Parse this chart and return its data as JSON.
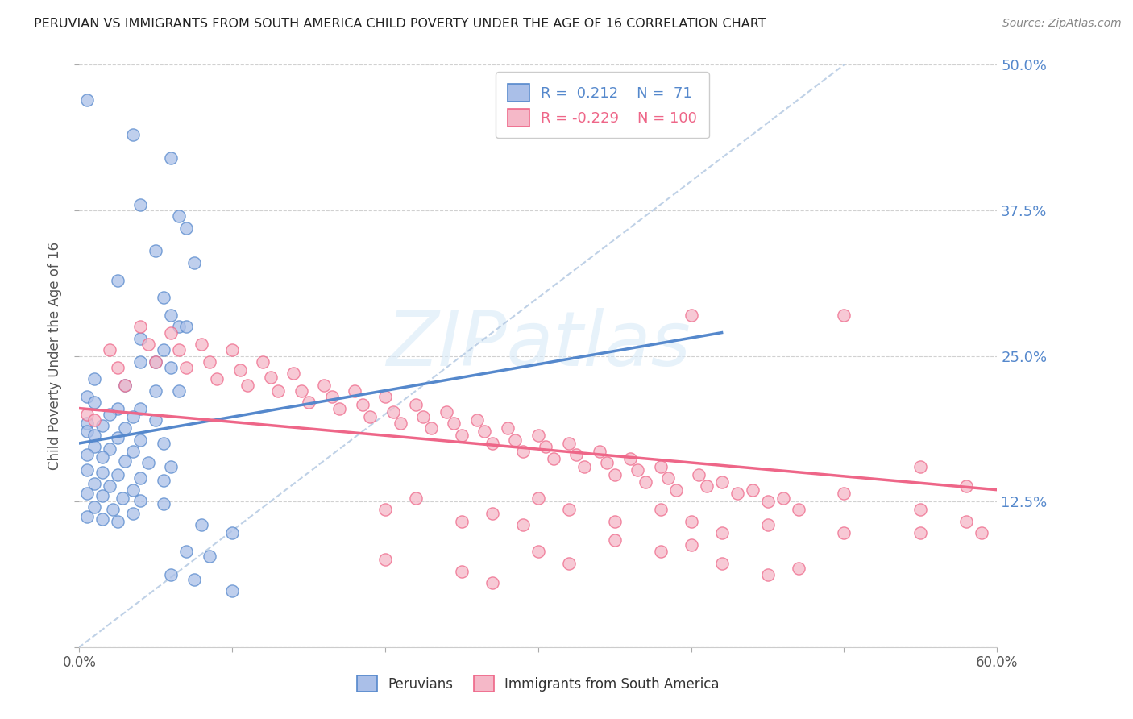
{
  "title": "PERUVIAN VS IMMIGRANTS FROM SOUTH AMERICA CHILD POVERTY UNDER THE AGE OF 16 CORRELATION CHART",
  "source": "Source: ZipAtlas.com",
  "ylabel": "Child Poverty Under the Age of 16",
  "xlim": [
    0.0,
    0.6
  ],
  "ylim": [
    0.0,
    0.5
  ],
  "xtick_positions": [
    0.0,
    0.1,
    0.2,
    0.3,
    0.4,
    0.5,
    0.6
  ],
  "xtick_labels": [
    "0.0%",
    "",
    "",
    "",
    "",
    "",
    "60.0%"
  ],
  "yticks": [
    0.0,
    0.125,
    0.25,
    0.375,
    0.5
  ],
  "ytick_labels_right": [
    "",
    "12.5%",
    "25.0%",
    "37.5%",
    "50.0%"
  ],
  "blue_color": "#5588cc",
  "blue_fill": "#aabfe8",
  "pink_color": "#ee6688",
  "pink_fill": "#f5b8c8",
  "r_blue": 0.212,
  "n_blue": 71,
  "r_pink": -0.229,
  "n_pink": 100,
  "legend_label_blue": "Peruvians",
  "legend_label_pink": "Immigrants from South America",
  "watermark": "ZIPatlas",
  "blue_scatter": [
    [
      0.005,
      0.47
    ],
    [
      0.035,
      0.44
    ],
    [
      0.06,
      0.42
    ],
    [
      0.04,
      0.38
    ],
    [
      0.065,
      0.37
    ],
    [
      0.07,
      0.36
    ],
    [
      0.05,
      0.34
    ],
    [
      0.075,
      0.33
    ],
    [
      0.025,
      0.315
    ],
    [
      0.055,
      0.3
    ],
    [
      0.06,
      0.285
    ],
    [
      0.065,
      0.275
    ],
    [
      0.07,
      0.275
    ],
    [
      0.04,
      0.265
    ],
    [
      0.055,
      0.255
    ],
    [
      0.04,
      0.245
    ],
    [
      0.05,
      0.245
    ],
    [
      0.06,
      0.24
    ],
    [
      0.01,
      0.23
    ],
    [
      0.03,
      0.225
    ],
    [
      0.05,
      0.22
    ],
    [
      0.065,
      0.22
    ],
    [
      0.005,
      0.215
    ],
    [
      0.01,
      0.21
    ],
    [
      0.025,
      0.205
    ],
    [
      0.04,
      0.205
    ],
    [
      0.02,
      0.2
    ],
    [
      0.035,
      0.198
    ],
    [
      0.05,
      0.195
    ],
    [
      0.005,
      0.192
    ],
    [
      0.015,
      0.19
    ],
    [
      0.03,
      0.188
    ],
    [
      0.005,
      0.185
    ],
    [
      0.01,
      0.182
    ],
    [
      0.025,
      0.18
    ],
    [
      0.04,
      0.178
    ],
    [
      0.055,
      0.175
    ],
    [
      0.01,
      0.172
    ],
    [
      0.02,
      0.17
    ],
    [
      0.035,
      0.168
    ],
    [
      0.005,
      0.165
    ],
    [
      0.015,
      0.163
    ],
    [
      0.03,
      0.16
    ],
    [
      0.045,
      0.158
    ],
    [
      0.06,
      0.155
    ],
    [
      0.005,
      0.152
    ],
    [
      0.015,
      0.15
    ],
    [
      0.025,
      0.148
    ],
    [
      0.04,
      0.145
    ],
    [
      0.055,
      0.143
    ],
    [
      0.01,
      0.14
    ],
    [
      0.02,
      0.138
    ],
    [
      0.035,
      0.135
    ],
    [
      0.005,
      0.132
    ],
    [
      0.015,
      0.13
    ],
    [
      0.028,
      0.128
    ],
    [
      0.04,
      0.126
    ],
    [
      0.055,
      0.123
    ],
    [
      0.01,
      0.12
    ],
    [
      0.022,
      0.118
    ],
    [
      0.035,
      0.115
    ],
    [
      0.005,
      0.112
    ],
    [
      0.015,
      0.11
    ],
    [
      0.025,
      0.108
    ],
    [
      0.08,
      0.105
    ],
    [
      0.1,
      0.098
    ],
    [
      0.07,
      0.082
    ],
    [
      0.085,
      0.078
    ],
    [
      0.06,
      0.062
    ],
    [
      0.075,
      0.058
    ],
    [
      0.1,
      0.048
    ]
  ],
  "pink_scatter": [
    [
      0.005,
      0.2
    ],
    [
      0.01,
      0.195
    ],
    [
      0.02,
      0.255
    ],
    [
      0.025,
      0.24
    ],
    [
      0.03,
      0.225
    ],
    [
      0.04,
      0.275
    ],
    [
      0.045,
      0.26
    ],
    [
      0.05,
      0.245
    ],
    [
      0.06,
      0.27
    ],
    [
      0.065,
      0.255
    ],
    [
      0.07,
      0.24
    ],
    [
      0.08,
      0.26
    ],
    [
      0.085,
      0.245
    ],
    [
      0.09,
      0.23
    ],
    [
      0.1,
      0.255
    ],
    [
      0.105,
      0.238
    ],
    [
      0.11,
      0.225
    ],
    [
      0.12,
      0.245
    ],
    [
      0.125,
      0.232
    ],
    [
      0.13,
      0.22
    ],
    [
      0.14,
      0.235
    ],
    [
      0.145,
      0.22
    ],
    [
      0.15,
      0.21
    ],
    [
      0.16,
      0.225
    ],
    [
      0.165,
      0.215
    ],
    [
      0.17,
      0.205
    ],
    [
      0.18,
      0.22
    ],
    [
      0.185,
      0.208
    ],
    [
      0.19,
      0.198
    ],
    [
      0.2,
      0.215
    ],
    [
      0.205,
      0.202
    ],
    [
      0.21,
      0.192
    ],
    [
      0.22,
      0.208
    ],
    [
      0.225,
      0.198
    ],
    [
      0.23,
      0.188
    ],
    [
      0.24,
      0.202
    ],
    [
      0.245,
      0.192
    ],
    [
      0.25,
      0.182
    ],
    [
      0.26,
      0.195
    ],
    [
      0.265,
      0.185
    ],
    [
      0.27,
      0.175
    ],
    [
      0.28,
      0.188
    ],
    [
      0.285,
      0.178
    ],
    [
      0.29,
      0.168
    ],
    [
      0.3,
      0.182
    ],
    [
      0.305,
      0.172
    ],
    [
      0.31,
      0.162
    ],
    [
      0.32,
      0.175
    ],
    [
      0.325,
      0.165
    ],
    [
      0.33,
      0.155
    ],
    [
      0.34,
      0.168
    ],
    [
      0.345,
      0.158
    ],
    [
      0.35,
      0.148
    ],
    [
      0.36,
      0.162
    ],
    [
      0.365,
      0.152
    ],
    [
      0.37,
      0.142
    ],
    [
      0.38,
      0.155
    ],
    [
      0.385,
      0.145
    ],
    [
      0.39,
      0.135
    ],
    [
      0.4,
      0.285
    ],
    [
      0.405,
      0.148
    ],
    [
      0.41,
      0.138
    ],
    [
      0.42,
      0.142
    ],
    [
      0.43,
      0.132
    ],
    [
      0.44,
      0.135
    ],
    [
      0.45,
      0.125
    ],
    [
      0.46,
      0.128
    ],
    [
      0.47,
      0.118
    ],
    [
      0.2,
      0.075
    ],
    [
      0.25,
      0.065
    ],
    [
      0.27,
      0.055
    ],
    [
      0.3,
      0.082
    ],
    [
      0.32,
      0.072
    ],
    [
      0.35,
      0.092
    ],
    [
      0.38,
      0.082
    ],
    [
      0.4,
      0.088
    ],
    [
      0.42,
      0.072
    ],
    [
      0.45,
      0.062
    ],
    [
      0.47,
      0.068
    ],
    [
      0.2,
      0.118
    ],
    [
      0.22,
      0.128
    ],
    [
      0.25,
      0.108
    ],
    [
      0.27,
      0.115
    ],
    [
      0.29,
      0.105
    ],
    [
      0.3,
      0.128
    ],
    [
      0.32,
      0.118
    ],
    [
      0.35,
      0.108
    ],
    [
      0.38,
      0.118
    ],
    [
      0.4,
      0.108
    ],
    [
      0.42,
      0.098
    ],
    [
      0.45,
      0.105
    ],
    [
      0.5,
      0.098
    ],
    [
      0.5,
      0.132
    ],
    [
      0.5,
      0.285
    ],
    [
      0.55,
      0.118
    ],
    [
      0.55,
      0.098
    ],
    [
      0.58,
      0.108
    ],
    [
      0.59,
      0.098
    ],
    [
      0.55,
      0.155
    ],
    [
      0.58,
      0.138
    ]
  ]
}
